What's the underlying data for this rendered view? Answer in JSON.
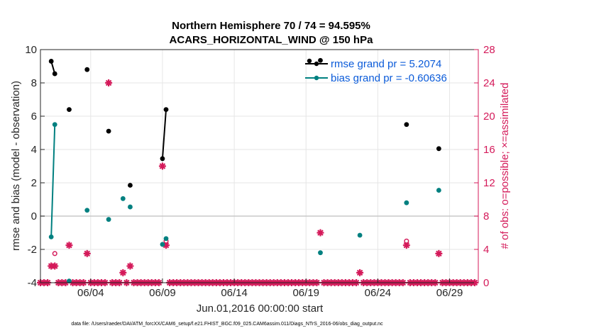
{
  "chart_data": {
    "type": "line",
    "title": "Northern Hemisphere 70 / 74 = 94.595%",
    "subtitle": "ACARS_HORIZONTAL_WIND @ 150 hPa",
    "xlabel": "Jun.01,2016 00:00:00 start",
    "ylabel": "rmse and bias (model - observation)",
    "ylabel_right": "# of obs: o=possible; ×=assimilated",
    "xlim": [
      0.5,
      31.0
    ],
    "ylim": [
      -4,
      10
    ],
    "ylim_right": [
      0,
      28
    ],
    "x_ticks": [
      {
        "v": 4,
        "label": "06/04"
      },
      {
        "v": 9,
        "label": "06/09"
      },
      {
        "v": 14,
        "label": "06/14"
      },
      {
        "v": 19,
        "label": "06/19"
      },
      {
        "v": 24,
        "label": "06/24"
      },
      {
        "v": 29,
        "label": "06/29"
      }
    ],
    "y_ticks": [
      {
        "v": -4,
        "label": "-4"
      },
      {
        "v": -2,
        "label": "-2"
      },
      {
        "v": 0,
        "label": "0"
      },
      {
        "v": 2,
        "label": "2"
      },
      {
        "v": 4,
        "label": "4"
      },
      {
        "v": 6,
        "label": "6"
      },
      {
        "v": 8,
        "label": "8"
      },
      {
        "v": 10,
        "label": "10"
      }
    ],
    "y_ticks_right": [
      {
        "v": 0,
        "label": "0"
      },
      {
        "v": 4,
        "label": "4"
      },
      {
        "v": 8,
        "label": "8"
      },
      {
        "v": 12,
        "label": "12"
      },
      {
        "v": 16,
        "label": "16"
      },
      {
        "v": 20,
        "label": "20"
      },
      {
        "v": 24,
        "label": "24"
      },
      {
        "v": 28,
        "label": "28"
      }
    ],
    "series": [
      {
        "name": "rmse grand pr = 5.2074",
        "color": "#000000",
        "points": [
          [
            1.25,
            9.3
          ],
          [
            1.5,
            8.55
          ]
        ],
        "extra_points": [
          [
            2.5,
            6.4
          ],
          [
            3.75,
            8.8
          ],
          [
            5.25,
            5.1
          ],
          [
            6.75,
            1.85
          ],
          [
            9.0,
            3.45
          ],
          [
            9.25,
            6.4
          ],
          [
            20.0,
            9.35
          ],
          [
            26.0,
            5.5
          ],
          [
            28.25,
            4.05
          ]
        ],
        "segments": [
          [
            [
              1.25,
              9.3
            ],
            [
              1.5,
              8.55
            ]
          ],
          [
            [
              9.0,
              3.45
            ],
            [
              9.25,
              6.4
            ]
          ]
        ]
      },
      {
        "name": "bias grand pr = -0.60636",
        "color": "#008080",
        "points": [
          [
            1.25,
            -1.25
          ],
          [
            1.5,
            5.5
          ]
        ],
        "extra_points": [
          [
            2.5,
            -3.9
          ],
          [
            3.75,
            0.35
          ],
          [
            5.25,
            -0.2
          ],
          [
            6.25,
            1.05
          ],
          [
            6.75,
            0.55
          ],
          [
            9.0,
            -1.7
          ],
          [
            9.25,
            -1.35
          ],
          [
            20.0,
            -2.2
          ],
          [
            22.75,
            -1.15
          ],
          [
            26.0,
            0.8
          ],
          [
            28.25,
            1.55
          ]
        ],
        "segments": [
          [
            [
              1.25,
              -1.25
            ],
            [
              1.5,
              5.5
            ]
          ]
        ]
      }
    ],
    "obs_possible": [
      [
        1.5,
        3.5
      ],
      [
        9.25,
        5.0
      ],
      [
        26.0,
        5.0
      ]
    ],
    "obs_assimilated": [
      [
        1.25,
        2.0
      ],
      [
        1.5,
        2.0
      ],
      [
        2.5,
        4.5
      ],
      [
        3.75,
        3.5
      ],
      [
        5.25,
        24.0
      ],
      [
        6.25,
        1.2
      ],
      [
        6.75,
        2.0
      ],
      [
        9.0,
        14.0
      ],
      [
        9.25,
        4.5
      ],
      [
        20.0,
        6.0
      ],
      [
        22.75,
        1.2
      ],
      [
        26.0,
        4.5
      ],
      [
        28.25,
        3.5
      ]
    ],
    "obs_zero_x": [
      0.5,
      0.75,
      1.0,
      1.75,
      2.0,
      2.25,
      2.75,
      3.0,
      3.25,
      3.5,
      4.0,
      4.25,
      4.5,
      4.75,
      5.0,
      5.5,
      5.75,
      6.0,
      6.5,
      7.0,
      7.25,
      7.5,
      7.75,
      8.0,
      8.25,
      8.5,
      8.75,
      9.5,
      9.75,
      10.0,
      10.25,
      10.5,
      10.75,
      11.0,
      11.25,
      11.5,
      11.75,
      12.0,
      12.25,
      12.5,
      12.75,
      13.0,
      13.25,
      13.5,
      13.75,
      14.0,
      14.25,
      14.5,
      14.75,
      15.0,
      15.25,
      15.5,
      15.75,
      16.0,
      16.25,
      16.5,
      16.75,
      17.0,
      17.25,
      17.5,
      17.75,
      18.0,
      18.25,
      18.5,
      18.75,
      19.0,
      19.25,
      19.5,
      19.75,
      20.25,
      20.5,
      20.75,
      21.0,
      21.25,
      21.5,
      21.75,
      22.0,
      22.25,
      22.5,
      23.0,
      23.25,
      23.5,
      23.75,
      24.0,
      24.25,
      24.5,
      24.75,
      25.0,
      25.25,
      25.5,
      25.75,
      26.25,
      26.5,
      26.75,
      27.0,
      27.25,
      27.5,
      27.75,
      28.0,
      28.5,
      28.75,
      29.0,
      29.25,
      29.5,
      29.75,
      30.0,
      30.25,
      30.5,
      30.75
    ],
    "legend_position": "top-right"
  },
  "footnote": "data file: /Users/raeder/DAI/ATM_forcXX/CAM6_setup/f.e21.FHIST_BGC.f09_025.CAM6assim.011/Diags_NTrS_2016-06/obs_diag_output.nc",
  "colors": {
    "rmse": "#000000",
    "bias": "#008080",
    "obs": "#d41a5a",
    "grid": "#e6e6e6",
    "zero_line": "#c8c8c8"
  }
}
